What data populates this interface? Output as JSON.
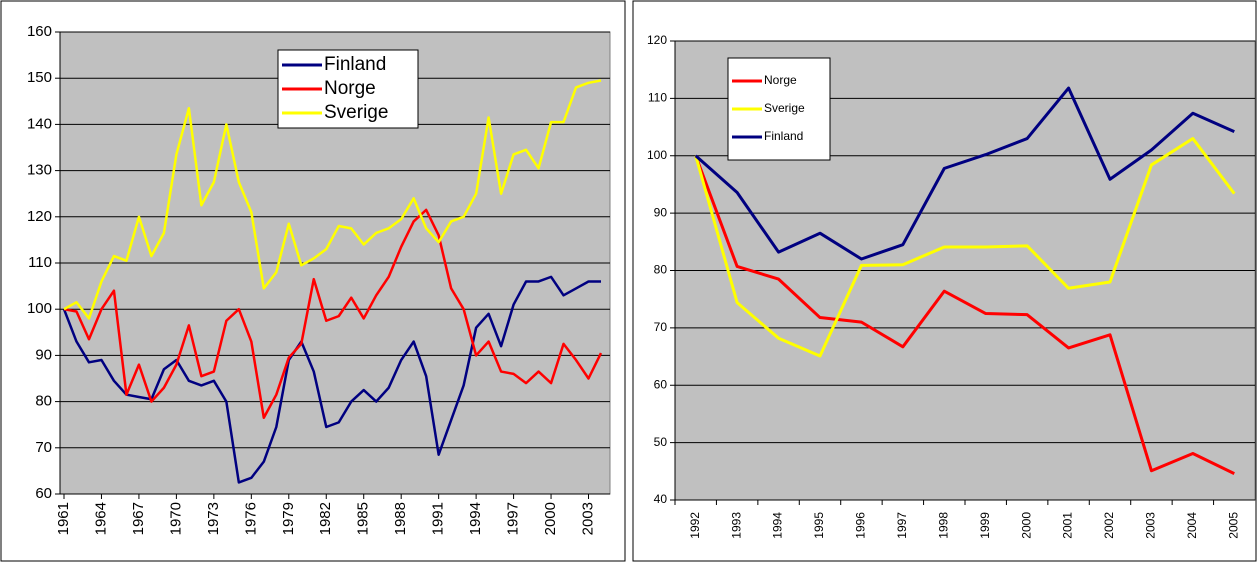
{
  "chart_data": [
    {
      "type": "line",
      "x": [
        1961,
        1962,
        1963,
        1964,
        1965,
        1966,
        1967,
        1968,
        1969,
        1970,
        1971,
        1972,
        1973,
        1974,
        1975,
        1976,
        1977,
        1978,
        1979,
        1980,
        1981,
        1982,
        1983,
        1984,
        1985,
        1986,
        1987,
        1988,
        1989,
        1990,
        1991,
        1992,
        1993,
        1994,
        1995,
        1996,
        1997,
        1998,
        1999,
        2000,
        2001,
        2002,
        2003,
        2004
      ],
      "xlim": [
        1961,
        2004
      ],
      "xticks": [
        1961,
        1964,
        1967,
        1970,
        1973,
        1976,
        1979,
        1982,
        1985,
        1988,
        1991,
        1994,
        1997,
        2000,
        2003
      ],
      "ylim": [
        60,
        160
      ],
      "yticks": [
        60,
        70,
        80,
        90,
        100,
        110,
        120,
        130,
        140,
        150,
        160
      ],
      "grid": true,
      "legend": "top",
      "series": [
        {
          "name": "Finland",
          "color": "#000080",
          "values": [
            100,
            93,
            88.5,
            89,
            84.5,
            81.5,
            81,
            80.5,
            87,
            89,
            84.5,
            83.5,
            84.5,
            80,
            62.5,
            63.5,
            67,
            74.5,
            89,
            93,
            86.5,
            74.5,
            75.5,
            80,
            82.5,
            80,
            83,
            89,
            93,
            85.5,
            68.5,
            76,
            83.5,
            96,
            99,
            92,
            101,
            106,
            106,
            107,
            103,
            104.5,
            106,
            106
          ]
        },
        {
          "name": "Norge",
          "color": "#ff0000",
          "values": [
            100,
            99.5,
            93.5,
            100,
            104,
            81.5,
            88,
            80,
            83,
            88,
            96.5,
            85.5,
            86.5,
            97.5,
            100,
            93,
            76.5,
            81.5,
            89.5,
            92.5,
            106.5,
            97.5,
            98.5,
            102.5,
            98,
            103,
            107,
            113.5,
            119,
            121.5,
            116,
            104.5,
            100,
            90,
            93,
            86.5,
            86,
            84,
            86.5,
            84,
            92.5,
            89,
            85,
            90.5
          ]
        },
        {
          "name": "Sverige",
          "color": "#ffff00",
          "values": [
            100,
            101.5,
            98,
            106,
            111.5,
            110.5,
            120,
            111.5,
            116.5,
            133.5,
            143.5,
            122.5,
            127.5,
            140,
            127.5,
            121,
            104.5,
            108,
            118.5,
            109.5,
            111,
            113,
            118,
            117.5,
            114,
            116.5,
            117.5,
            119.5,
            124,
            117.5,
            114.5,
            119,
            120,
            125,
            141.5,
            125,
            133.5,
            134.5,
            130.5,
            140.5,
            140.5,
            148,
            149,
            149.5
          ]
        }
      ]
    },
    {
      "type": "line",
      "categories": [
        "1992",
        "1993",
        "1994",
        "1995",
        "1996",
        "1997",
        "1998",
        "1999",
        "2000",
        "2001",
        "2002",
        "2003",
        "2004",
        "2005"
      ],
      "ylim": [
        40,
        120
      ],
      "yticks": [
        40,
        50,
        60,
        70,
        80,
        90,
        100,
        110,
        120
      ],
      "grid": true,
      "legend": "top-left",
      "series": [
        {
          "name": "Norge",
          "color": "#ff0000",
          "values": [
            100,
            80.7,
            78.5,
            71.8,
            71,
            66.7,
            76.4,
            72.5,
            72.3,
            66.5,
            68.8,
            45.1,
            48.1,
            44.6
          ]
        },
        {
          "name": "Sverige",
          "color": "#ffff00",
          "values": [
            100,
            74.4,
            68.2,
            65.1,
            80.9,
            81,
            84.1,
            84.1,
            84.3,
            76.9,
            78,
            98.4,
            103,
            93.4
          ]
        },
        {
          "name": "Finland",
          "color": "#000080",
          "values": [
            100,
            93.6,
            83.2,
            86.5,
            82,
            84.5,
            97.8,
            100.2,
            103,
            111.8,
            95.9,
            101,
            107.4,
            104.2
          ]
        }
      ]
    }
  ]
}
